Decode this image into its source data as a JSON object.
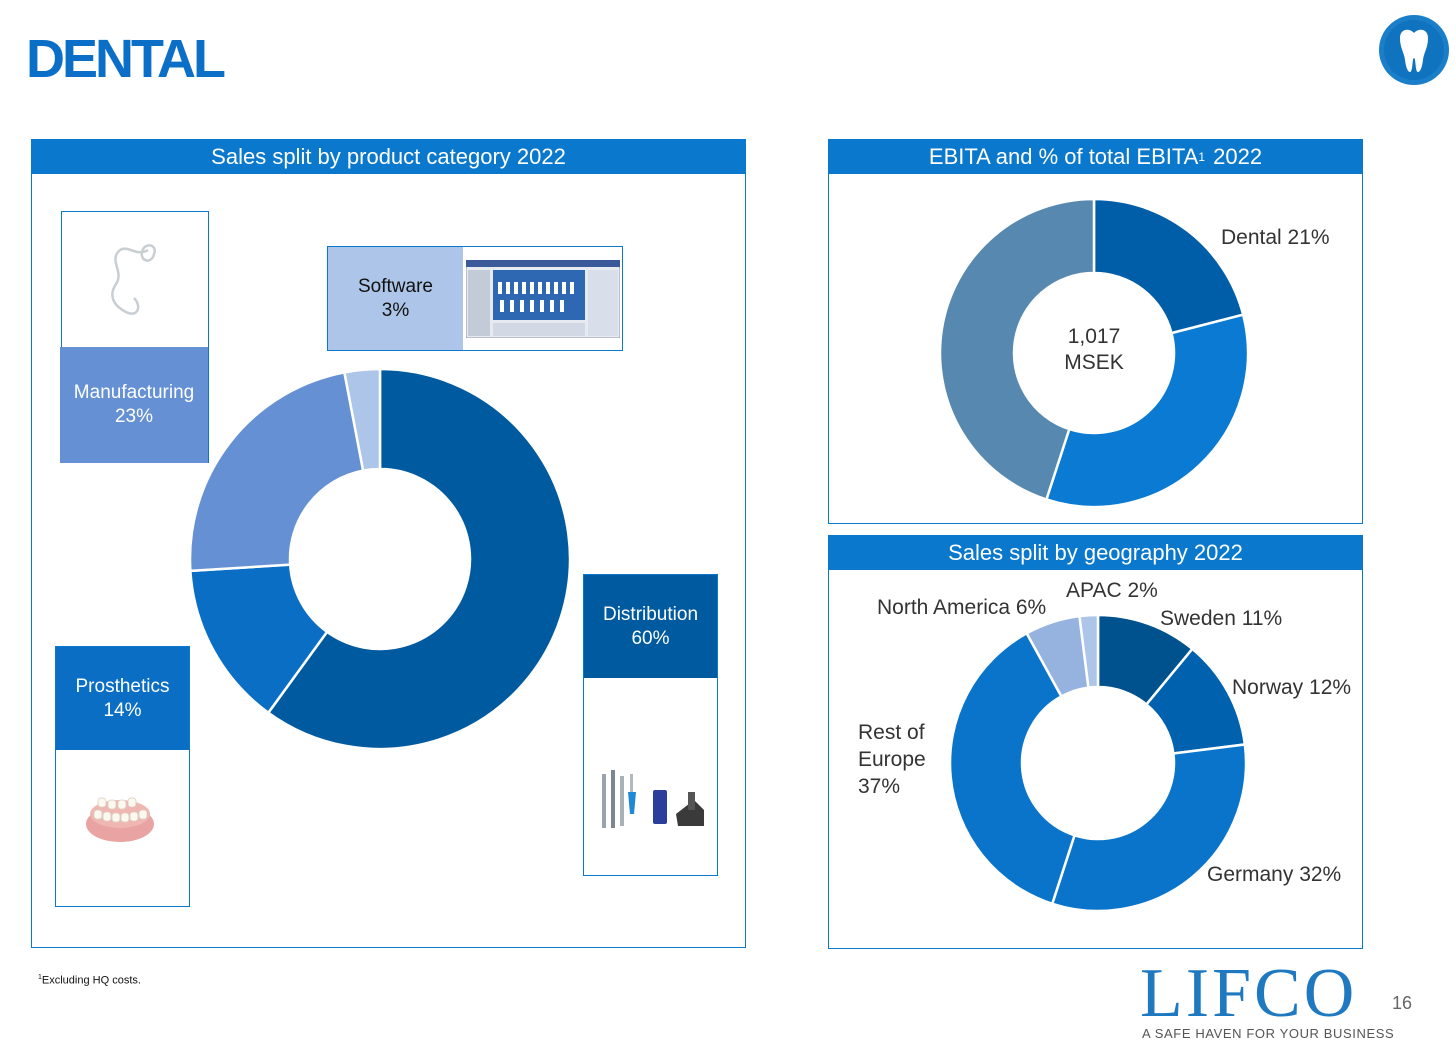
{
  "slide": {
    "title": "DENTAL",
    "footnote": "Excluding HQ costs.",
    "footnote_marker": "1",
    "page_number": "16",
    "logo": {
      "name": "LIFCO",
      "tagline": "A SAFE HAVEN FOR YOUR BUSINESS"
    },
    "badge_icon": "tooth-icon"
  },
  "colors": {
    "primary": "#0a78cc",
    "distribution": "#005aa0",
    "prosthetics": "#0a6ec4",
    "manufacturing": "#6591d4",
    "software": "#adc5e8",
    "ebita_dental": "#005ea8",
    "ebita_second": "#0a7ad3",
    "ebita_third": "#5789b0",
    "sweden": "#00528f",
    "norway": "#0062ae",
    "germany": "#0a74cb",
    "rest_of_europe": "#0a74cb",
    "north_america": "#96b3e0",
    "apac": "#adc5e8"
  },
  "panels": {
    "product": {
      "header": "Sales split by product category 2022",
      "labels": {
        "software": [
          "Software",
          "3%"
        ],
        "manufacturing": [
          "Manufacturing",
          "23%"
        ],
        "prosthetics": [
          "Prosthetics",
          "14%"
        ],
        "distribution": [
          "Distribution",
          "60%"
        ]
      }
    },
    "ebita": {
      "header_text": "EBITA and % of total EBITA",
      "header_sup": "1",
      "header_year": " 2022",
      "center_lines": [
        "1,017",
        "MSEK"
      ],
      "label_dental": "Dental 21%"
    },
    "geo": {
      "header": "Sales split by geography 2022",
      "labels": {
        "apac": "APAC 2%",
        "north_america": "North America 6%",
        "sweden": "Sweden 11%",
        "norway": "Norway 12%",
        "rest_of_europe": [
          "Rest of",
          "Europe",
          "37%"
        ],
        "germany": "Germany 32%"
      }
    }
  },
  "chart_data": [
    {
      "type": "pie",
      "title": "Sales split by product category 2022",
      "categories": [
        "Distribution",
        "Prosthetics",
        "Manufacturing",
        "Software"
      ],
      "values": [
        60,
        14,
        23,
        3
      ],
      "unit": "%",
      "donut": true
    },
    {
      "type": "pie",
      "title": "EBITA and % of total EBITA 2022",
      "categories": [
        "Dental",
        "",
        ""
      ],
      "values": [
        21,
        34,
        45
      ],
      "unit": "%",
      "center_label": "1,017 MSEK",
      "donut": true
    },
    {
      "type": "pie",
      "title": "Sales split by geography 2022",
      "categories": [
        "Sweden",
        "Norway",
        "Germany",
        "Rest of Europe",
        "North America",
        "APAC"
      ],
      "values": [
        11,
        12,
        32,
        37,
        6,
        2
      ],
      "unit": "%",
      "donut": true
    }
  ]
}
